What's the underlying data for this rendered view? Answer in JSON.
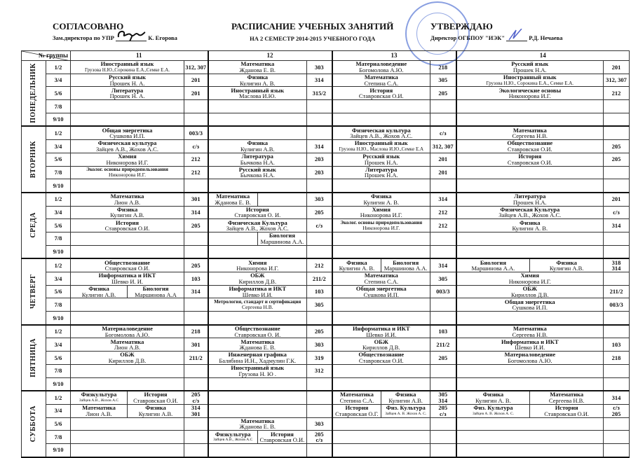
{
  "header": {
    "approve_left_title": "СОГЛАСОВАНО",
    "approve_left_role": "Зам.директора по УПР",
    "approve_left_name": "К. Егорова",
    "title": "РАСПИСАНИЕ УЧЕБНЫХ ЗАНЯТИЙ",
    "subtitle": "НА 2 СЕМЕСТР 2014-2015 УЧЕБНОГО ГОДА",
    "approve_right_title": "УТВЕРЖДАЮ",
    "approve_right_role": "Директор ОГБПОУ \"ИЭК\"",
    "approve_right_name": "Р.Д. Нечаева",
    "stamp_text": "ОГБПОУ ИЭК"
  },
  "table": {
    "group_label": "№ группы",
    "groups": [
      "11",
      "12",
      "13",
      "14"
    ],
    "days": [
      {
        "name": "ПОНЕДЕЛЬНИК",
        "lessons": [
          {
            "pair": "1/2",
            "cells": [
              {
                "subject": "Иностранный язык",
                "teacher": "Грузова Н.Ю.,Сорокина Е.А.,Семке Е.А.",
                "room": "312, 307"
              },
              {
                "subject": "Математика",
                "teacher": "Жданова Е. В.",
                "room": "303"
              },
              {
                "subject": "Материаловедение",
                "teacher": "Богомолова А.Ю.",
                "room": "218"
              },
              {
                "subject": "Русский язык",
                "teacher": "Прошек Н.А.",
                "room": "201"
              }
            ]
          },
          {
            "pair": "3/4",
            "cells": [
              {
                "subject": "Русский язык",
                "teacher": "Прошек Н.  А.",
                "room": "201"
              },
              {
                "subject": "Физика",
                "teacher": "Кулигин А. В.",
                "room": "314"
              },
              {
                "subject": "Математика",
                "teacher": "Степина С.А.",
                "room": "305"
              },
              {
                "subject": "Иностранный язык",
                "teacher": "Грузова Н.Ю., Сорокина Е.А., Семке Е.А.",
                "room": "312, 307"
              }
            ]
          },
          {
            "pair": "5/6",
            "cells": [
              {
                "subject": "Литература",
                "teacher": "Прошек Н.  А.",
                "room": "201"
              },
              {
                "subject": "Иностранный язык",
                "teacher": "Маслова И.Ю.",
                "room": "315/2"
              },
              {
                "subject": "История",
                "teacher": "Ставровская О.И.",
                "room": "205"
              },
              {
                "subject": "Экологические основы",
                "teacher": "Никонорова И.Г.",
                "room": "212"
              }
            ]
          },
          {
            "pair": "7/8",
            "cells": [
              null,
              null,
              null,
              null
            ]
          },
          {
            "pair": "9/10",
            "cells": [
              null,
              null,
              null,
              null
            ]
          }
        ]
      },
      {
        "name": "ВТОРНИК",
        "lessons": [
          {
            "pair": "1/2",
            "cells": [
              {
                "subject": "Общая энергетика",
                "teacher": "Сушкова И.П.",
                "room": "003/3"
              },
              null,
              {
                "subject": "Физическая культура",
                "teacher": "Зайцев А.В., Жохов А.С.",
                "room": "с/з"
              },
              {
                "subject": "Математика",
                "teacher": "Сергеева Н.В.",
                "room": ""
              }
            ]
          },
          {
            "pair": "3/4",
            "cells": [
              {
                "subject": "Физическая культура",
                "teacher": "Зайцев А.В., Жохов А.С.",
                "room": "с/з"
              },
              {
                "subject": "Физика",
                "teacher": "Кулигин А.В.",
                "room": "314"
              },
              {
                "subject": "Иностранный язык",
                "teacher": "Грузова Н.Ю., Маслова И.Ю.,Семке Е.А",
                "room": "312, 307"
              },
              {
                "subject": "Обществознание",
                "teacher": "Ставровская О.И.",
                "room": "205"
              }
            ]
          },
          {
            "pair": "5/6",
            "cells": [
              {
                "subject": "Химия",
                "teacher": "Никонорова И.Г.",
                "room": "212"
              },
              {
                "subject": "Литература",
                "teacher": "Бычкова Н.А.",
                "room": "203"
              },
              {
                "subject": "Русский язык",
                "teacher": "Прошек Н.А.",
                "room": "201"
              },
              {
                "subject": "История",
                "teacher": "Ставровская О.И.",
                "room": "205"
              }
            ]
          },
          {
            "pair": "7/8",
            "cells": [
              {
                "subject": "Эколог. основы природопользования",
                "teacher": "Никонорова И.Г.",
                "room": "212"
              },
              {
                "subject": "Русский язык",
                "teacher": "Бычкова Н.А.",
                "room": "203"
              },
              {
                "subject": "Литература",
                "teacher": "Прошек Н.А.",
                "room": "201"
              },
              null
            ]
          },
          {
            "pair": "9/10",
            "cells": [
              null,
              null,
              null,
              null
            ]
          }
        ]
      },
      {
        "name": "СРЕДА",
        "lessons": [
          {
            "pair": "1/2",
            "cells": [
              {
                "subject": "Математика",
                "teacher": "Лион А.В.",
                "room": "301"
              },
              {
                "parts": [
                  {
                    "subject": "Математика",
                    "teacher": "Жданова Е. В."
                  },
                  {
                    "subject": "",
                    "teacher": ""
                  }
                ],
                "room": "303"
              },
              {
                "subject": "Физика",
                "teacher": "Кулигин А. В.",
                "room": "314"
              },
              {
                "subject": "Литература",
                "teacher": "Прошек Н.А.",
                "room": "201"
              }
            ]
          },
          {
            "pair": "3/4",
            "cells": [
              {
                "subject": "Физика",
                "teacher": "Кулигин А.В.",
                "room": "314"
              },
              {
                "subject": "История",
                "teacher": "Ставровская О. И.",
                "room": "205"
              },
              {
                "subject": "Химия",
                "teacher": "Никонорова И.Г.",
                "room": "212"
              },
              {
                "subject": "Физическая Культура",
                "teacher": "Зайцев А.В., Жохов А.С.",
                "room": "с/з"
              }
            ]
          },
          {
            "pair": "5/6",
            "cells": [
              {
                "subject": "История",
                "teacher": "Ставровская О.И.",
                "room": "205"
              },
              {
                "subject": "Физическая Культура",
                "teacher": "Зайцев А.В., Жохов А.С.",
                "room": "с/з"
              },
              {
                "subject": "Эколог. основы природопользования",
                "teacher": "Никонорова И.Г.",
                "room": "212"
              },
              {
                "subject": "Физика",
                "teacher": "Кулигин А. В.",
                "room": "314"
              }
            ]
          },
          {
            "pair": "7/8",
            "cells": [
              null,
              {
                "parts": [
                  {
                    "subject": "",
                    "teacher": ""
                  },
                  {
                    "subject": "Биология",
                    "teacher": "Маршинова А.А."
                  }
                ],
                "room": ""
              },
              null,
              null
            ]
          },
          {
            "pair": "9/10",
            "cells": [
              null,
              null,
              null,
              null
            ]
          }
        ]
      },
      {
        "name": "ЧЕТВЕРГ",
        "lessons": [
          {
            "pair": "1/2",
            "cells": [
              {
                "subject": "Обществознание",
                "teacher": "Ставровская О.И.",
                "room": "205"
              },
              {
                "subject": "Химия",
                "teacher": "Никонорова И.Г.",
                "room": "212"
              },
              {
                "parts": [
                  {
                    "subject": "Физика",
                    "teacher": "Кулигин А. В."
                  },
                  {
                    "subject": "Биология",
                    "teacher": "Маршинова А.А."
                  }
                ],
                "room": "314"
              },
              {
                "parts": [
                  {
                    "subject": "Биология",
                    "teacher": "Маршинова А.А."
                  },
                  {
                    "subject": "Физика",
                    "teacher": "Кулигин А.В."
                  }
                ],
                "room": "318\n314"
              }
            ]
          },
          {
            "pair": "3/4",
            "cells": [
              {
                "subject": "Информатика и ИКТ",
                "teacher": "Шевко И. И.",
                "room": "103"
              },
              {
                "subject": "ОБЖ",
                "teacher": "Кириллов Д.В.",
                "room": "211/2"
              },
              {
                "subject": "Математика",
                "teacher": "Степина С.А.",
                "room": "305"
              },
              {
                "subject": "Химия",
                "teacher": "Никонорова И.Г.",
                "room": ""
              }
            ]
          },
          {
            "pair": "5/6",
            "cells": [
              {
                "parts": [
                  {
                    "subject": "Физика",
                    "teacher": "Кулигин А.В."
                  },
                  {
                    "subject": "Биология",
                    "teacher": "Маршинова А.А"
                  }
                ],
                "room": "314"
              },
              {
                "subject": "Информатика и ИКТ",
                "teacher": "Шевко И.И.",
                "room": "103"
              },
              {
                "subject": "Общая энергетика",
                "teacher": "Сушкова И.П.",
                "room": "003/3"
              },
              {
                "subject": "ОБЖ",
                "teacher": "Кириллов Д.В.",
                "room": "211/2"
              }
            ]
          },
          {
            "pair": "7/8",
            "cells": [
              null,
              {
                "subject": "Метрология, стандарт и сертификация",
                "teacher": "Сергеева Н.В.",
                "room": "305"
              },
              null,
              {
                "subject": "Общая энергетика",
                "teacher": "Сушкова И.П.",
                "room": "003/3"
              }
            ]
          },
          {
            "pair": "9/10",
            "cells": [
              null,
              null,
              null,
              null
            ]
          }
        ]
      },
      {
        "name": "ПЯТНИЦА",
        "lessons": [
          {
            "pair": "1/2",
            "cells": [
              {
                "subject": "Материаловедение",
                "teacher": "Богомолова А.Ю.",
                "room": "218"
              },
              {
                "subject": "Обществознание",
                "teacher": "Ставровская О. И.",
                "room": "205"
              },
              {
                "subject": "Информатика и ИКТ",
                "teacher": "Шевко И.И.",
                "room": "103"
              },
              {
                "subject": "Математика",
                "teacher": "Сергеева Н.В.",
                "room": ""
              }
            ]
          },
          {
            "pair": "3/4",
            "cells": [
              {
                "subject": "Математика",
                "teacher": "Лион А.В.",
                "room": "301"
              },
              {
                "subject": "Математика",
                "teacher": "Жданова Е. В.",
                "room": "303"
              },
              {
                "subject": "ОБЖ",
                "teacher": "Кириллов Д.В.",
                "room": "211/2"
              },
              {
                "subject": "Информатика и ИКТ",
                "teacher": "Шевко И.И.",
                "room": "103"
              }
            ]
          },
          {
            "pair": "5/6",
            "cells": [
              {
                "subject": "ОБЖ",
                "teacher": "Кириллов Д.В.",
                "room": "211/2"
              },
              {
                "subject": "Инженерная графика",
                "teacher": "Балябина И.Н., Хадмулин Г.К.",
                "room": "319"
              },
              {
                "subject": "Обществознание",
                "teacher": "Ставровская О.И.",
                "room": "205"
              },
              {
                "subject": "Материаловедение",
                "teacher": "Богомолова А.Ю.",
                "room": "218"
              }
            ]
          },
          {
            "pair": "7/8",
            "cells": [
              null,
              {
                "subject": "Иностранный язык",
                "teacher": "Грузова Н. Ю .",
                "room": "312"
              },
              null,
              null
            ]
          },
          {
            "pair": "9/10",
            "cells": [
              null,
              null,
              null,
              null
            ]
          }
        ]
      },
      {
        "name": "СУББОТА",
        "lessons": [
          {
            "pair": "1/2",
            "cells": [
              {
                "parts": [
                  {
                    "subject": "Физкультура",
                    "teacher": "Зайцев А.В., Жохов А.С"
                  },
                  {
                    "subject": "История",
                    "teacher": "Ставровская О.И."
                  }
                ],
                "room": "205\nс/з"
              },
              null,
              {
                "parts": [
                  {
                    "subject": "Математика",
                    "teacher": "Степина С.А."
                  },
                  {
                    "subject": "Физика",
                    "teacher": "Кулигин А.В."
                  }
                ],
                "room": "305\n314"
              },
              {
                "parts": [
                  {
                    "subject": "Физика",
                    "teacher": "Кулигин А. В."
                  },
                  {
                    "subject": "Математика",
                    "teacher": "Сергеева Н.В."
                  }
                ],
                "room": "314"
              }
            ]
          },
          {
            "pair": "3/4",
            "cells": [
              {
                "parts": [
                  {
                    "subject": "Математика",
                    "teacher": "Лион А.В."
                  },
                  {
                    "subject": "Физика",
                    "teacher": "Кулигин А.В."
                  }
                ],
                "room": "314\n301"
              },
              null,
              {
                "parts": [
                  {
                    "subject": "История",
                    "teacher": "Ставровская О.Г."
                  },
                  {
                    "subject": "Физ. Культура",
                    "teacher": "Зайцев А. В. Жохов А. С."
                  }
                ],
                "room": "205\nс/з"
              },
              {
                "parts": [
                  {
                    "subject": "Физ. Культура",
                    "teacher": "Зайцев А. В. Жохов А. С."
                  },
                  {
                    "subject": "История",
                    "teacher": "Ставровская О.И."
                  }
                ],
                "room": "с/з\n205"
              }
            ]
          },
          {
            "pair": "5/6",
            "cells": [
              null,
              {
                "subject": "Математика",
                "teacher": "Жданова Е. В.",
                "room": "303"
              },
              null,
              null
            ]
          },
          {
            "pair": "7/8",
            "cells": [
              null,
              {
                "parts": [
                  {
                    "subject": "Физкультура",
                    "teacher": "Зайцев А.В., Жохов А.С"
                  },
                  {
                    "subject": "История",
                    "teacher": "Ставровская О.И."
                  }
                ],
                "room": "205\nс/з"
              },
              null,
              null
            ]
          },
          {
            "pair": "9/10",
            "cells": [
              null,
              null,
              null,
              null
            ]
          }
        ]
      }
    ]
  }
}
